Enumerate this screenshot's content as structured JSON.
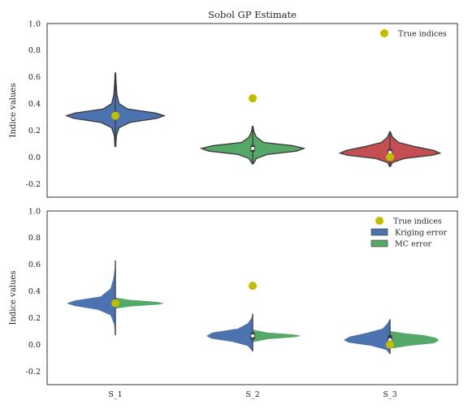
{
  "chart_data": [
    {
      "type": "violin",
      "title": "Sobol GP Estimate",
      "xlabel": "",
      "ylabel": "Indice values",
      "ylim": [
        -0.3,
        1.0
      ],
      "yticks": [
        "-0.2",
        "0.0",
        "0.2",
        "0.4",
        "0.6",
        "0.8",
        "1.0"
      ],
      "show_x_tick_labels": false,
      "categories": [
        "S_1",
        "S_2",
        "S_3"
      ],
      "grid": false,
      "legend": {
        "placement": "top-right",
        "entries": [
          {
            "label": "True indices",
            "marker": "dot",
            "color": "#bfbf00"
          }
        ]
      },
      "violins": [
        {
          "category": "S_1",
          "color": "#4c72b0",
          "median": 0.31,
          "q1": 0.29,
          "q3": 0.34,
          "min": 0.08,
          "max": 0.63,
          "profile": [
            [
              0.08,
              0.003
            ],
            [
              0.16,
              0.008
            ],
            [
              0.22,
              0.03
            ],
            [
              0.26,
              0.12
            ],
            [
              0.29,
              0.34
            ],
            [
              0.31,
              0.4
            ],
            [
              0.33,
              0.33
            ],
            [
              0.36,
              0.1
            ],
            [
              0.4,
              0.03
            ],
            [
              0.47,
              0.012
            ],
            [
              0.55,
              0.006
            ],
            [
              0.63,
              0.002
            ]
          ]
        },
        {
          "category": "S_2",
          "color": "#55a868",
          "median": 0.065,
          "q1": 0.04,
          "q3": 0.09,
          "min": -0.05,
          "max": 0.23,
          "profile": [
            [
              -0.05,
              0.004
            ],
            [
              -0.01,
              0.03
            ],
            [
              0.02,
              0.12
            ],
            [
              0.045,
              0.36
            ],
            [
              0.065,
              0.42
            ],
            [
              0.085,
              0.33
            ],
            [
              0.11,
              0.09
            ],
            [
              0.15,
              0.03
            ],
            [
              0.19,
              0.01
            ],
            [
              0.23,
              0.002
            ]
          ]
        },
        {
          "category": "S_3",
          "color": "#c44e52",
          "median": 0.035,
          "q1": 0.01,
          "q3": 0.06,
          "min": -0.07,
          "max": 0.19,
          "profile": [
            [
              -0.07,
              0.003
            ],
            [
              -0.04,
              0.02
            ],
            [
              -0.01,
              0.12
            ],
            [
              0.015,
              0.35
            ],
            [
              0.03,
              0.41
            ],
            [
              0.05,
              0.36
            ],
            [
              0.08,
              0.2
            ],
            [
              0.11,
              0.07
            ],
            [
              0.15,
              0.02
            ],
            [
              0.19,
              0.002
            ]
          ]
        }
      ],
      "true_indices": [
        {
          "category": "S_1",
          "value": 0.31
        },
        {
          "category": "S_2",
          "value": 0.44
        },
        {
          "category": "S_3",
          "value": 0.0
        }
      ]
    },
    {
      "type": "split-violin",
      "title": "",
      "xlabel": "",
      "ylabel": "Indice values",
      "ylim": [
        -0.3,
        1.0
      ],
      "yticks": [
        "-0.2",
        "0.0",
        "0.2",
        "0.4",
        "0.6",
        "0.8",
        "1.0"
      ],
      "show_x_tick_labels": true,
      "categories": [
        "S_1",
        "S_2",
        "S_3"
      ],
      "grid": false,
      "legend": {
        "placement": "top-right",
        "entries": [
          {
            "label": "True indices",
            "marker": "dot",
            "color": "#bfbf00"
          },
          {
            "label": "Kriging error",
            "marker": "patch",
            "color": "#4c72b0"
          },
          {
            "label": "MC error",
            "marker": "patch",
            "color": "#55a868"
          }
        ]
      },
      "series": [
        {
          "name": "Kriging error",
          "color": "#4c72b0",
          "side": "left",
          "violins": [
            {
              "category": "S_1",
              "median": 0.31,
              "q1": 0.29,
              "q3": 0.34,
              "min": 0.07,
              "max": 0.63,
              "profile": [
                [
                  0.07,
                  0.003
                ],
                [
                  0.15,
                  0.01
                ],
                [
                  0.22,
                  0.04
                ],
                [
                  0.26,
                  0.14
                ],
                [
                  0.29,
                  0.34
                ],
                [
                  0.31,
                  0.4
                ],
                [
                  0.33,
                  0.33
                ],
                [
                  0.36,
                  0.12
                ],
                [
                  0.42,
                  0.04
                ],
                [
                  0.5,
                  0.015
                ],
                [
                  0.57,
                  0.006
                ],
                [
                  0.63,
                  0.002
                ]
              ]
            },
            {
              "category": "S_2",
              "median": 0.065,
              "q1": 0.04,
              "q3": 0.09,
              "min": -0.05,
              "max": 0.23,
              "profile": [
                [
                  -0.05,
                  0.004
                ],
                [
                  -0.01,
                  0.04
                ],
                [
                  0.02,
                  0.16
                ],
                [
                  0.045,
                  0.34
                ],
                [
                  0.065,
                  0.38
                ],
                [
                  0.09,
                  0.33
                ],
                [
                  0.12,
                  0.12
                ],
                [
                  0.16,
                  0.04
                ],
                [
                  0.2,
                  0.01
                ],
                [
                  0.23,
                  0.002
                ]
              ]
            },
            {
              "category": "S_3",
              "median": 0.035,
              "q1": 0.01,
              "q3": 0.07,
              "min": -0.07,
              "max": 0.19,
              "profile": [
                [
                  -0.07,
                  0.003
                ],
                [
                  -0.04,
                  0.03
                ],
                [
                  -0.01,
                  0.15
                ],
                [
                  0.015,
                  0.34
                ],
                [
                  0.035,
                  0.38
                ],
                [
                  0.06,
                  0.33
                ],
                [
                  0.09,
                  0.18
                ],
                [
                  0.12,
                  0.06
                ],
                [
                  0.16,
                  0.02
                ],
                [
                  0.19,
                  0.002
                ]
              ]
            }
          ]
        },
        {
          "name": "MC error",
          "color": "#55a868",
          "side": "right",
          "violins": [
            {
              "category": "S_1",
              "median": 0.31,
              "q1": 0.29,
              "q3": 0.33,
              "min": 0.27,
              "max": 0.35,
              "profile": [
                [
                  0.27,
                  0.01
                ],
                [
                  0.285,
                  0.12
                ],
                [
                  0.3,
                  0.36
                ],
                [
                  0.31,
                  0.4
                ],
                [
                  0.32,
                  0.34
                ],
                [
                  0.335,
                  0.12
                ],
                [
                  0.35,
                  0.01
                ]
              ]
            },
            {
              "category": "S_2",
              "median": 0.065,
              "q1": 0.05,
              "q3": 0.08,
              "min": 0.02,
              "max": 0.11,
              "profile": [
                [
                  0.02,
                  0.01
                ],
                [
                  0.04,
                  0.12
                ],
                [
                  0.055,
                  0.34
                ],
                [
                  0.065,
                  0.4
                ],
                [
                  0.075,
                  0.34
                ],
                [
                  0.09,
                  0.12
                ],
                [
                  0.11,
                  0.01
                ]
              ]
            },
            {
              "category": "S_3",
              "median": 0.035,
              "q1": 0.01,
              "q3": 0.06,
              "min": -0.03,
              "max": 0.1,
              "profile": [
                [
                  -0.03,
                  0.01
                ],
                [
                  -0.01,
                  0.15
                ],
                [
                  0.01,
                  0.36
                ],
                [
                  0.03,
                  0.4
                ],
                [
                  0.05,
                  0.38
                ],
                [
                  0.07,
                  0.28
                ],
                [
                  0.085,
                  0.12
                ],
                [
                  0.1,
                  0.01
                ]
              ]
            }
          ]
        }
      ],
      "true_indices": [
        {
          "category": "S_1",
          "value": 0.31
        },
        {
          "category": "S_2",
          "value": 0.44
        },
        {
          "category": "S_3",
          "value": 0.0
        }
      ]
    }
  ]
}
